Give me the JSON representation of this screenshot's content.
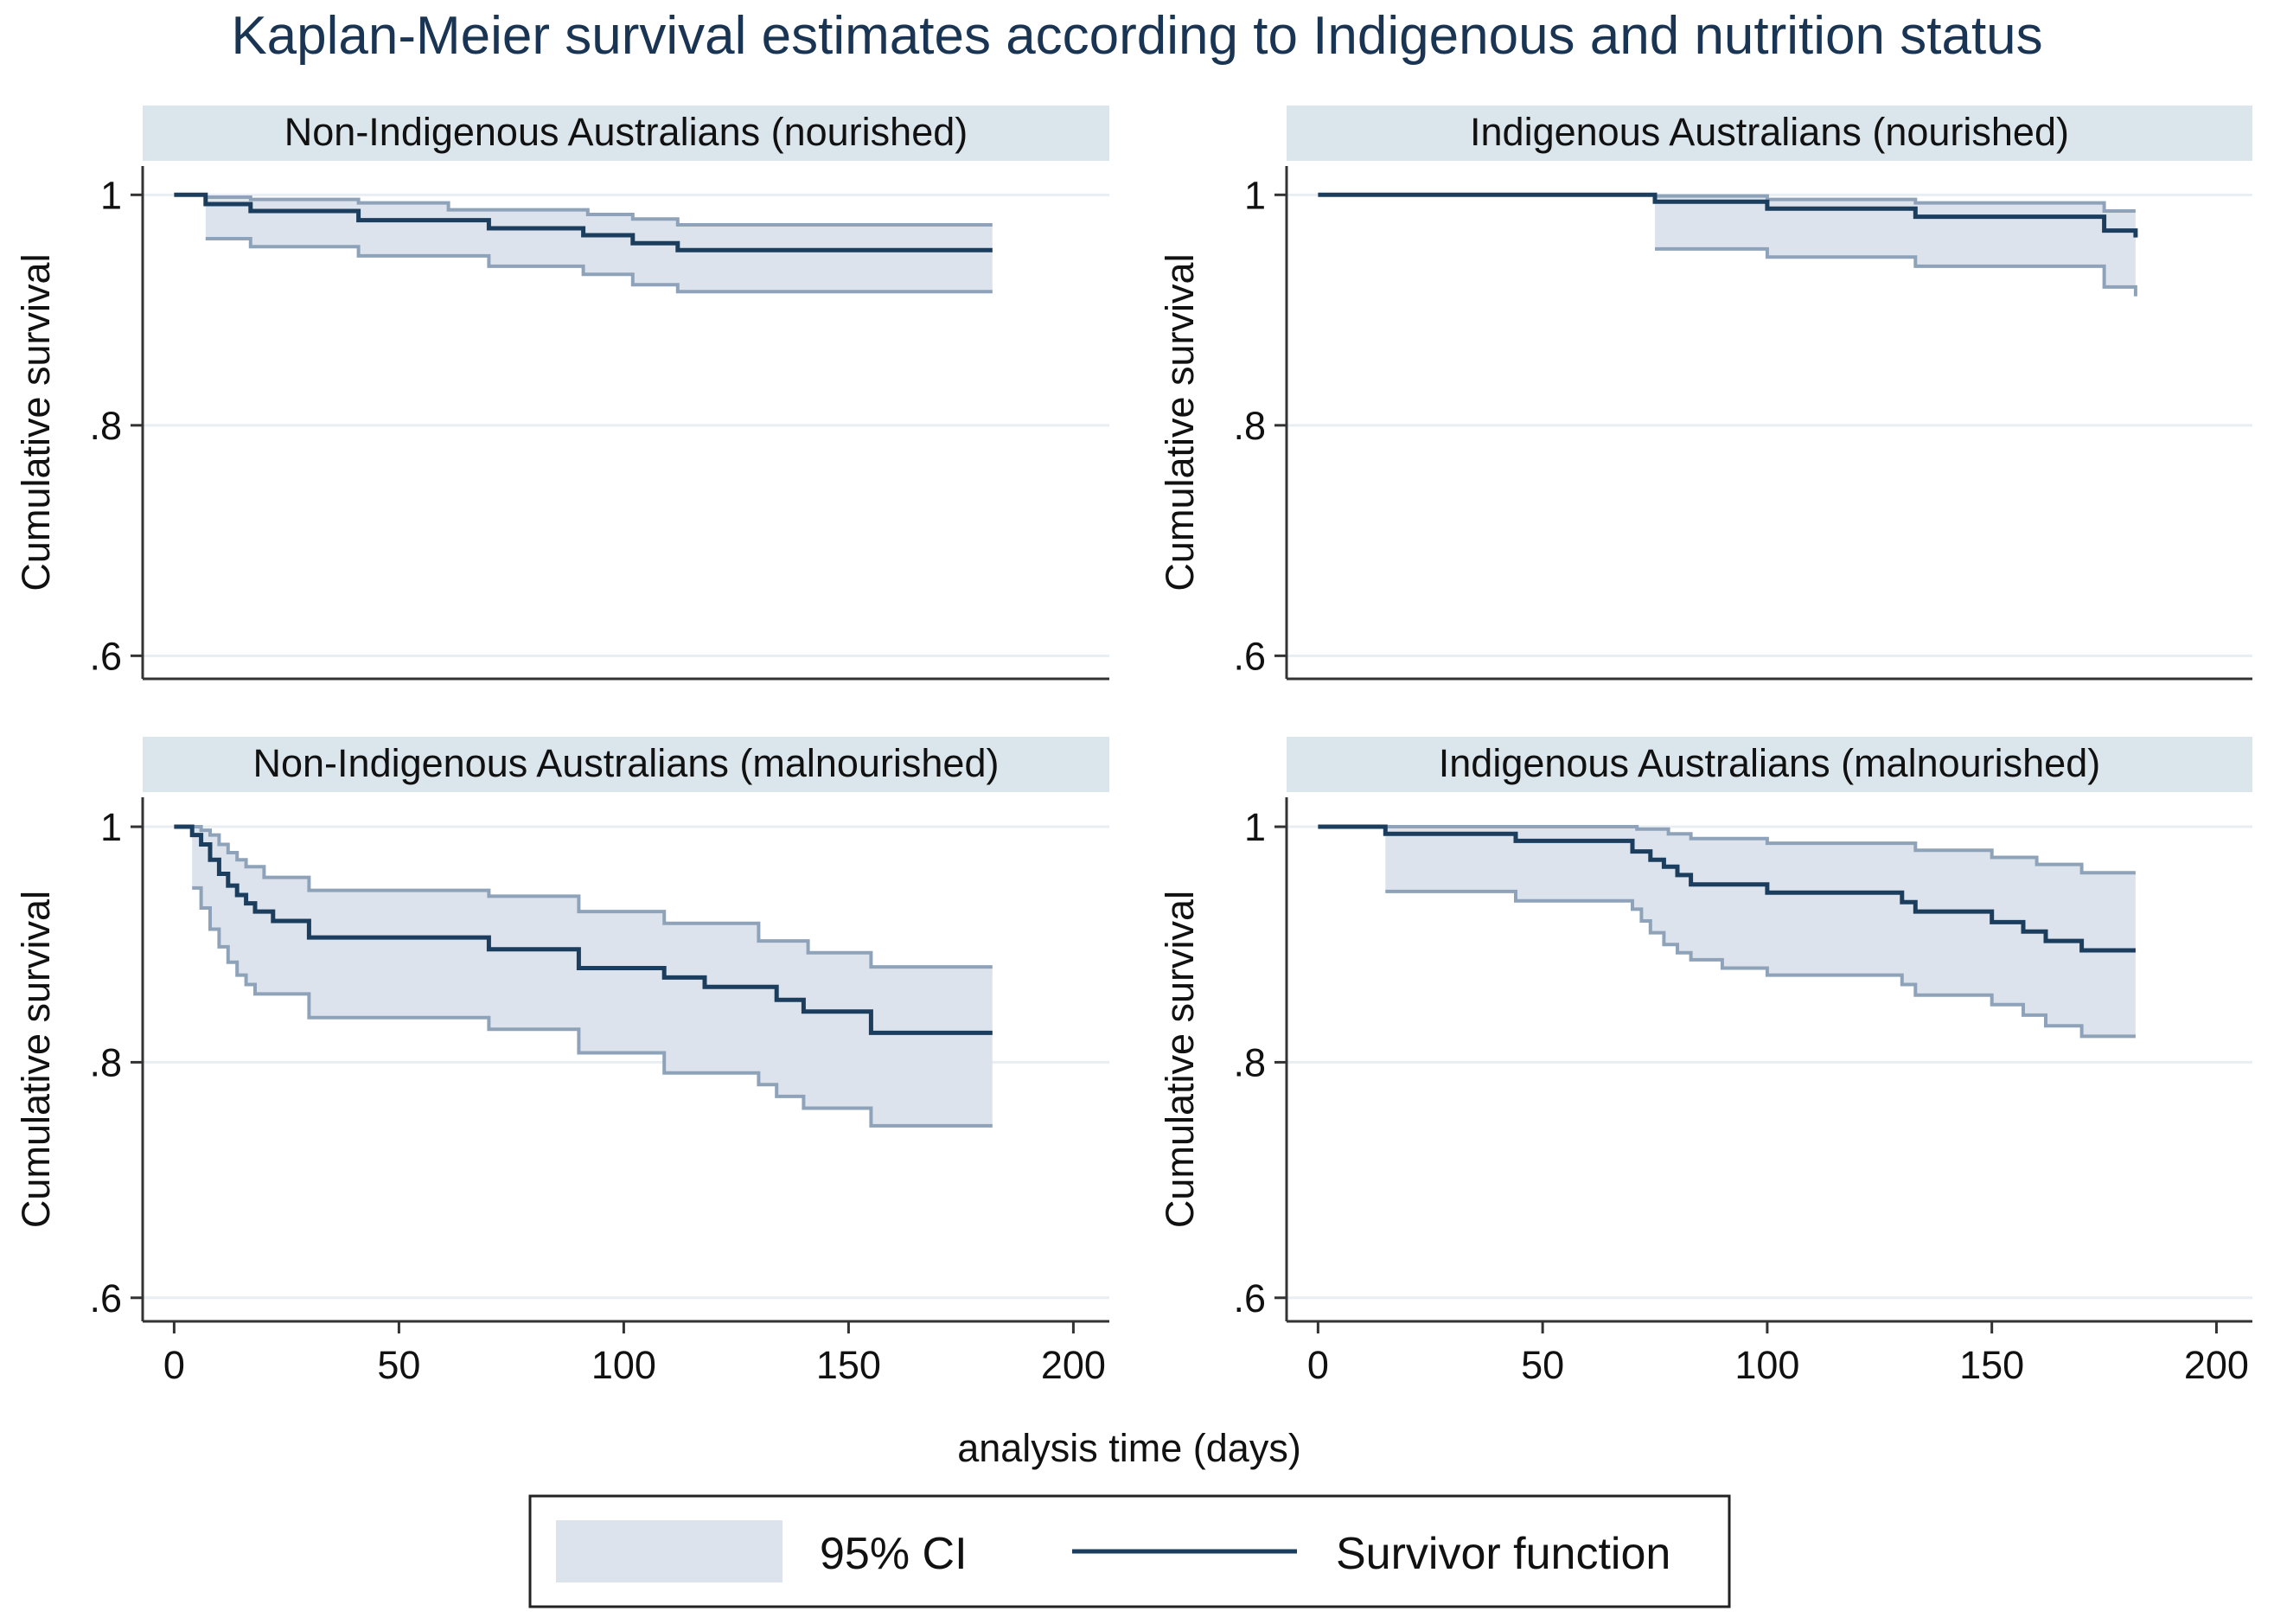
{
  "title": "Kaplan-Meier survival estimates according to Indigenous and nutrition status",
  "xlabel": "analysis time (days)",
  "legend": {
    "ci_label": "95% CI",
    "line_label": "Survivor function"
  },
  "colors": {
    "title": "#1a3553",
    "strip_fill": "#dae5ec",
    "ci_fill": "#dde3ec",
    "ci_edge": "#8ea3b9",
    "survivor_line": "#1c3e5e",
    "grid": "#e8eef2",
    "axis": "#333333"
  },
  "chart_data": [
    {
      "type": "line",
      "subtitle": "Non-Indigenous Australians (nourished)",
      "ylabel": "Cumulative survival",
      "xlim": [
        -7,
        208
      ],
      "ylim": [
        0.58,
        1.025
      ],
      "xticks": [
        0,
        50,
        100,
        150,
        200
      ],
      "xtick_labels": [
        "0",
        "50",
        "100",
        "150",
        "200"
      ],
      "yticks": [
        0.6,
        0.8,
        1.0
      ],
      "ytick_labels": [
        ".6",
        ".8",
        "1"
      ],
      "show_xticks": false,
      "series": [
        {
          "name": "Survivor function",
          "x": [
            0,
            7,
            17,
            41,
            70,
            91,
            102,
            112,
            182
          ],
          "y": [
            1.0,
            0.992,
            0.986,
            0.978,
            0.971,
            0.965,
            0.958,
            0.952,
            0.952
          ]
        },
        {
          "name": "95% CI upper",
          "x": [
            0,
            7,
            17,
            41,
            61,
            92,
            102,
            112,
            182
          ],
          "y": [
            1.0,
            0.998,
            0.996,
            0.993,
            0.987,
            0.983,
            0.979,
            0.974,
            0.974
          ]
        },
        {
          "name": "95% CI lower",
          "x": [
            7,
            17,
            41,
            70,
            91,
            102,
            112,
            182
          ],
          "y": [
            0.962,
            0.955,
            0.947,
            0.938,
            0.931,
            0.922,
            0.916,
            0.916
          ]
        }
      ]
    },
    {
      "type": "line",
      "subtitle": "Indigenous Australians (nourished)",
      "ylabel": "Cumulative survival",
      "xlim": [
        -7,
        208
      ],
      "ylim": [
        0.58,
        1.025
      ],
      "xticks": [
        0,
        50,
        100,
        150,
        200
      ],
      "xtick_labels": [
        "0",
        "50",
        "100",
        "150",
        "200"
      ],
      "yticks": [
        0.6,
        0.8,
        1.0
      ],
      "ytick_labels": [
        ".6",
        ".8",
        "1"
      ],
      "show_xticks": false,
      "series": [
        {
          "name": "Survivor function",
          "x": [
            0,
            75,
            100,
            133,
            175,
            182
          ],
          "y": [
            1.0,
            0.994,
            0.988,
            0.981,
            0.969,
            0.963
          ]
        },
        {
          "name": "95% CI upper",
          "x": [
            0,
            75,
            100,
            133,
            175,
            182
          ],
          "y": [
            1.0,
            0.999,
            0.996,
            0.993,
            0.986,
            0.986
          ]
        },
        {
          "name": "95% CI lower",
          "x": [
            75,
            100,
            133,
            175,
            182
          ],
          "y": [
            0.953,
            0.946,
            0.938,
            0.92,
            0.912
          ]
        }
      ]
    },
    {
      "type": "line",
      "subtitle": "Non-Indigenous Australians (malnourished)",
      "ylabel": "Cumulative survival",
      "xlim": [
        -7,
        208
      ],
      "ylim": [
        0.58,
        1.025
      ],
      "xticks": [
        0,
        50,
        100,
        150,
        200
      ],
      "xtick_labels": [
        "0",
        "50",
        "100",
        "150",
        "200"
      ],
      "yticks": [
        0.6,
        0.8,
        1.0
      ],
      "ytick_labels": [
        ".6",
        ".8",
        "1"
      ],
      "show_xticks": true,
      "series": [
        {
          "name": "Survivor function",
          "x": [
            0,
            4,
            6,
            8,
            10,
            12,
            14,
            16,
            18,
            22,
            30,
            70,
            90,
            109,
            118,
            134,
            140,
            155,
            182
          ],
          "y": [
            1.0,
            0.993,
            0.985,
            0.972,
            0.96,
            0.95,
            0.942,
            0.935,
            0.928,
            0.92,
            0.906,
            0.896,
            0.88,
            0.872,
            0.864,
            0.853,
            0.843,
            0.825,
            0.825
          ]
        },
        {
          "name": "95% CI upper",
          "x": [
            0,
            6,
            8,
            10,
            12,
            14,
            16,
            20,
            30,
            70,
            90,
            109,
            130,
            141,
            155,
            182
          ],
          "y": [
            1.0,
            0.997,
            0.993,
            0.985,
            0.978,
            0.972,
            0.966,
            0.957,
            0.946,
            0.941,
            0.928,
            0.918,
            0.903,
            0.893,
            0.881,
            0.881
          ]
        },
        {
          "name": "95% CI lower",
          "x": [
            4,
            6,
            8,
            10,
            12,
            14,
            16,
            18,
            30,
            70,
            90,
            109,
            130,
            134,
            140,
            155,
            182
          ],
          "y": [
            0.948,
            0.931,
            0.913,
            0.898,
            0.885,
            0.874,
            0.866,
            0.858,
            0.838,
            0.828,
            0.808,
            0.791,
            0.781,
            0.771,
            0.761,
            0.746,
            0.746
          ]
        }
      ]
    },
    {
      "type": "line",
      "subtitle": "Indigenous Australians (malnourished)",
      "ylabel": "Cumulative survival",
      "xlim": [
        -7,
        208
      ],
      "ylim": [
        0.58,
        1.025
      ],
      "xticks": [
        0,
        50,
        100,
        150,
        200
      ],
      "xtick_labels": [
        "0",
        "50",
        "100",
        "150",
        "200"
      ],
      "yticks": [
        0.6,
        0.8,
        1.0
      ],
      "ytick_labels": [
        ".6",
        ".8",
        "1"
      ],
      "show_xticks": true,
      "series": [
        {
          "name": "Survivor function",
          "x": [
            0,
            15,
            44,
            70,
            74,
            77,
            80,
            83,
            100,
            130,
            133,
            150,
            157,
            162,
            170,
            182
          ],
          "y": [
            1.0,
            0.994,
            0.988,
            0.979,
            0.972,
            0.966,
            0.959,
            0.951,
            0.944,
            0.936,
            0.928,
            0.919,
            0.911,
            0.903,
            0.895,
            0.895
          ]
        },
        {
          "name": "95% CI upper",
          "x": [
            0,
            71,
            78,
            83,
            100,
            133,
            150,
            160,
            170,
            182
          ],
          "y": [
            1.0,
            0.998,
            0.994,
            0.99,
            0.986,
            0.98,
            0.974,
            0.968,
            0.961,
            0.961
          ]
        },
        {
          "name": "95% CI lower",
          "x": [
            15,
            44,
            70,
            72,
            74,
            77,
            80,
            83,
            90,
            100,
            130,
            133,
            150,
            157,
            162,
            170,
            182
          ],
          "y": [
            0.945,
            0.937,
            0.93,
            0.92,
            0.91,
            0.9,
            0.893,
            0.887,
            0.88,
            0.874,
            0.866,
            0.857,
            0.849,
            0.84,
            0.831,
            0.822,
            0.822
          ]
        }
      ]
    }
  ]
}
